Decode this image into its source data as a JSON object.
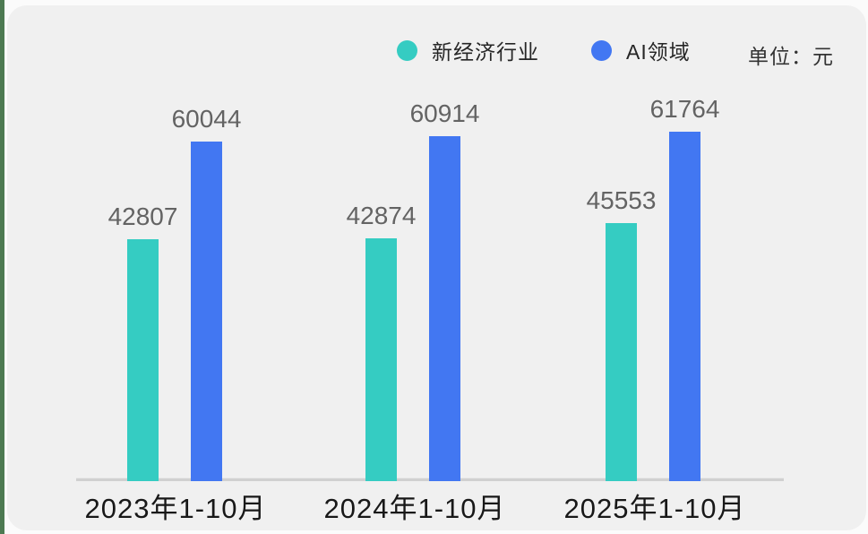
{
  "legend": {
    "items": [
      {
        "label": "新经济行业",
        "color": "#35ccc2"
      },
      {
        "label": "AI领域",
        "color": "#4277f2"
      }
    ],
    "unit_label": "单位：元"
  },
  "chart_data": {
    "type": "bar",
    "categories": [
      "2023年1-10月",
      "2024年1-10月",
      "2025年1-10月"
    ],
    "series": [
      {
        "name": "新经济行业",
        "color": "#35ccc2",
        "values": [
          42807,
          42874,
          45553
        ]
      },
      {
        "name": "AI领域",
        "color": "#4277f2",
        "values": [
          60044,
          60914,
          61764
        ]
      }
    ],
    "unit": "元",
    "ylim": [
      0,
      65000
    ],
    "grid": false,
    "legend_position": "top",
    "value_labels_shown": true
  },
  "colors": {
    "card_background": "#f0f0f0",
    "page_background": "#fbfbfb",
    "accent_strip": "#4d7a52",
    "axis_line": "#d0d0d0",
    "value_label_text": "#636363",
    "category_label_text": "#181818"
  }
}
